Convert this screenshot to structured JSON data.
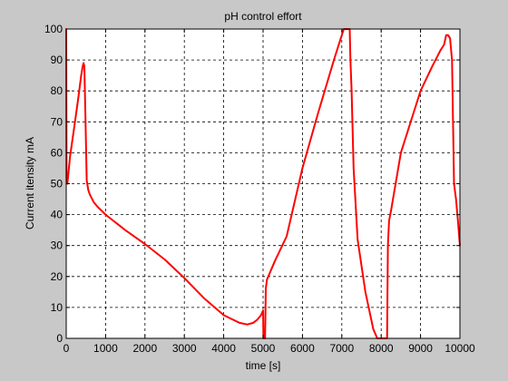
{
  "chart_data": {
    "type": "line",
    "title": "pH control effort",
    "xlabel": "time [s]",
    "ylabel": "Current itensity mA",
    "xlim": [
      0,
      10000
    ],
    "ylim": [
      0,
      100
    ],
    "xticks": [
      0,
      1000,
      2000,
      3000,
      4000,
      5000,
      6000,
      7000,
      8000,
      9000,
      10000
    ],
    "yticks": [
      0,
      10,
      20,
      30,
      40,
      50,
      60,
      70,
      80,
      90,
      100
    ],
    "grid": true,
    "grid_style": "dashed",
    "legend": "none",
    "series": [
      {
        "color": "#ff0000",
        "x": [
          0,
          10,
          30,
          100,
          200,
          300,
          380,
          420,
          440,
          460,
          490,
          520,
          560,
          600,
          700,
          800,
          1000,
          1500,
          2000,
          2500,
          3000,
          3500,
          4000,
          4400,
          4600,
          4750,
          4850,
          4950,
          5000,
          5010,
          5050,
          5060,
          5070,
          5100,
          5300,
          5600,
          6000,
          6400,
          6800,
          6950,
          7000,
          7050,
          7200,
          7220,
          7250,
          7300,
          7400,
          7600,
          7800,
          7900,
          7950,
          8050,
          8150,
          8170,
          8200,
          8230,
          8260,
          8300,
          8500,
          8800,
          9000,
          9300,
          9500,
          9600,
          9650,
          9700,
          9750,
          9800,
          9850,
          9900,
          9950,
          10000
        ],
        "y": [
          100,
          51,
          50,
          59,
          68,
          77,
          85,
          88,
          89,
          88,
          70,
          51,
          48,
          46.5,
          44,
          42.5,
          40,
          35,
          30.5,
          25.5,
          19.5,
          13,
          7.5,
          5,
          4.5,
          5,
          6,
          7.5,
          9,
          0,
          0,
          8,
          16,
          19,
          25,
          33,
          55,
          73,
          90,
          96,
          98,
          100,
          100,
          90,
          80,
          55,
          32,
          15,
          3,
          0,
          0,
          0,
          0,
          30,
          38,
          40,
          42,
          45,
          60,
          72,
          80,
          88,
          93,
          95,
          98,
          98,
          97,
          90,
          50,
          45,
          38,
          30
        ]
      }
    ]
  }
}
